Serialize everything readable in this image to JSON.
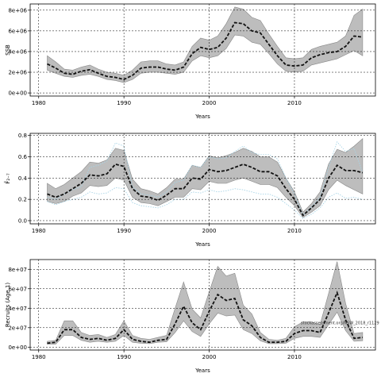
{
  "credit": "stockassessment.org/NSW_2018_r1129",
  "chart_data": [
    {
      "type": "line",
      "ylabel": "SSB",
      "xlabel": "Years",
      "xlim": [
        1979,
        2019.5
      ],
      "xticks": [
        1980,
        1990,
        2000,
        2010
      ],
      "xtick_labels": [
        "1980",
        "1990",
        "2000",
        "2010"
      ],
      "ylim": [
        -300000,
        8600000
      ],
      "yticks": [
        0,
        2000000,
        4000000,
        6000000,
        8000000
      ],
      "ytick_labels": [
        "0e+00",
        "2e+06",
        "4e+06",
        "6e+06",
        "8e+06"
      ],
      "grid": true,
      "x": [
        1981,
        1982,
        1983,
        1984,
        1985,
        1986,
        1987,
        1988,
        1989,
        1990,
        1991,
        1992,
        1993,
        1994,
        1995,
        1996,
        1997,
        1998,
        1999,
        2000,
        2001,
        2002,
        2003,
        2004,
        2005,
        2006,
        2007,
        2008,
        2009,
        2010,
        2011,
        2012,
        2013,
        2014,
        2015,
        2016,
        2017,
        2018
      ],
      "series": [
        {
          "role": "estimate",
          "values": [
            2800000,
            2400000,
            1900000,
            1800000,
            2100000,
            2250000,
            1900000,
            1600000,
            1500000,
            1300000,
            1700000,
            2400000,
            2500000,
            2500000,
            2300000,
            2200000,
            2500000,
            3800000,
            4400000,
            4200000,
            4400000,
            5300000,
            6800000,
            6700000,
            6000000,
            5800000,
            4700000,
            3600000,
            2700000,
            2600000,
            2700000,
            3400000,
            3700000,
            3900000,
            4000000,
            4500000,
            5500000,
            5400000
          ]
        },
        {
          "role": "upper",
          "values": [
            3600000,
            3000000,
            2300000,
            2200000,
            2500000,
            2700000,
            2300000,
            2000000,
            1900000,
            1700000,
            2200000,
            3000000,
            3100000,
            3100000,
            2800000,
            2700000,
            3000000,
            4500000,
            5300000,
            5100000,
            5500000,
            6700000,
            8300000,
            8100000,
            7300000,
            7000000,
            5700000,
            4500000,
            3400000,
            3300000,
            3400000,
            4200000,
            4500000,
            4700000,
            4900000,
            5500000,
            7500000,
            8100000
          ]
        },
        {
          "role": "lower",
          "values": [
            2200000,
            1900000,
            1600000,
            1500000,
            1700000,
            1800000,
            1600000,
            1300000,
            1200000,
            1000000,
            1300000,
            1900000,
            2000000,
            2000000,
            1900000,
            1800000,
            2000000,
            3100000,
            3600000,
            3400000,
            3600000,
            4300000,
            5600000,
            5500000,
            4900000,
            4700000,
            3800000,
            2800000,
            2100000,
            2000000,
            2100000,
            2700000,
            2900000,
            3100000,
            3300000,
            3700000,
            4100000,
            3600000
          ]
        }
      ]
    },
    {
      "type": "line",
      "ylabel": "F̄₂₋₇",
      "xlabel": "Years",
      "xlim": [
        1979,
        2019.5
      ],
      "xticks": [
        1980,
        1990,
        2000,
        2010
      ],
      "xtick_labels": [
        "1980",
        "1990",
        "2000",
        "2010"
      ],
      "ylim": [
        -0.03,
        0.82
      ],
      "yticks": [
        0.0,
        0.2,
        0.4,
        0.6,
        0.8
      ],
      "ytick_labels": [
        "0.0",
        "0.2",
        "0.4",
        "0.6",
        "0.8"
      ],
      "grid": true,
      "x": [
        1981,
        1982,
        1983,
        1984,
        1985,
        1986,
        1987,
        1988,
        1989,
        1990,
        1991,
        1992,
        1993,
        1994,
        1995,
        1996,
        1997,
        1998,
        1999,
        2000,
        2001,
        2002,
        2003,
        2004,
        2005,
        2006,
        2007,
        2008,
        2009,
        2010,
        2011,
        2012,
        2013,
        2014,
        2015,
        2016,
        2017,
        2018
      ],
      "series": [
        {
          "role": "estimate",
          "values": [
            0.25,
            0.22,
            0.25,
            0.3,
            0.35,
            0.43,
            0.42,
            0.44,
            0.53,
            0.51,
            0.3,
            0.23,
            0.22,
            0.19,
            0.24,
            0.3,
            0.3,
            0.4,
            0.39,
            0.48,
            0.46,
            0.47,
            0.5,
            0.53,
            0.5,
            0.46,
            0.46,
            0.42,
            0.3,
            0.2,
            0.05,
            0.12,
            0.2,
            0.4,
            0.52,
            0.47,
            0.47,
            0.45
          ]
        },
        {
          "role": "upper",
          "values": [
            0.35,
            0.3,
            0.34,
            0.4,
            0.46,
            0.55,
            0.54,
            0.57,
            0.68,
            0.66,
            0.39,
            0.3,
            0.28,
            0.25,
            0.31,
            0.39,
            0.39,
            0.52,
            0.5,
            0.61,
            0.59,
            0.61,
            0.64,
            0.68,
            0.65,
            0.6,
            0.6,
            0.55,
            0.4,
            0.27,
            0.08,
            0.16,
            0.27,
            0.53,
            0.67,
            0.64,
            0.7,
            0.77
          ]
        },
        {
          "role": "lower",
          "values": [
            0.18,
            0.16,
            0.18,
            0.23,
            0.26,
            0.33,
            0.32,
            0.33,
            0.4,
            0.38,
            0.22,
            0.17,
            0.16,
            0.14,
            0.18,
            0.22,
            0.22,
            0.3,
            0.29,
            0.37,
            0.35,
            0.35,
            0.38,
            0.4,
            0.37,
            0.34,
            0.34,
            0.31,
            0.22,
            0.14,
            0.03,
            0.08,
            0.14,
            0.29,
            0.38,
            0.33,
            0.29,
            0.25
          ]
        },
        {
          "role": "dotted-upper",
          "values": [
            0.22,
            0.2,
            0.25,
            0.29,
            0.32,
            0.5,
            0.52,
            0.56,
            0.73,
            0.7,
            0.32,
            0.25,
            0.24,
            0.22,
            0.27,
            0.36,
            0.38,
            0.52,
            0.5,
            0.6,
            0.58,
            0.59,
            0.65,
            0.7,
            0.64,
            0.62,
            0.62,
            0.58,
            0.4,
            0.25,
            0.05,
            0.13,
            0.22,
            0.5,
            0.74,
            0.65,
            0.68,
            0.45
          ]
        },
        {
          "role": "dotted-lower",
          "values": [
            0.18,
            0.15,
            0.18,
            0.2,
            0.22,
            0.27,
            0.25,
            0.26,
            0.31,
            0.3,
            0.17,
            0.14,
            0.13,
            0.12,
            0.15,
            0.2,
            0.2,
            0.27,
            0.26,
            0.29,
            0.27,
            0.28,
            0.3,
            0.29,
            0.27,
            0.25,
            0.25,
            0.22,
            0.16,
            0.1,
            0.02,
            0.06,
            0.12,
            0.22,
            0.26,
            0.21,
            0.22,
            0.2
          ]
        }
      ]
    },
    {
      "type": "line",
      "ylabel": "Recruits (Age 1)",
      "xlabel": "Years",
      "xlim": [
        1979,
        2019.5
      ],
      "xticks": [
        1980,
        1990,
        2000,
        2010
      ],
      "xtick_labels": [
        "1980",
        "1990",
        "2000",
        "2010"
      ],
      "ylim": [
        -3000000,
        90000000
      ],
      "yticks": [
        0,
        20000000,
        40000000,
        60000000,
        80000000
      ],
      "ytick_labels": [
        "0e+00",
        "2e+07",
        "4e+07",
        "6e+07",
        "8e+07"
      ],
      "grid": true,
      "x": [
        1981,
        1982,
        1983,
        1984,
        1985,
        1986,
        1987,
        1988,
        1989,
        1990,
        1991,
        1992,
        1993,
        1994,
        1995,
        1996,
        1997,
        1998,
        1999,
        2000,
        2001,
        2002,
        2003,
        2004,
        2005,
        2006,
        2007,
        2008,
        2009,
        2010,
        2011,
        2012,
        2013,
        2014,
        2015,
        2016,
        2017,
        2018
      ],
      "series": [
        {
          "role": "estimate",
          "values": [
            4000000,
            5000000,
            18000000,
            18000000,
            10000000,
            8000000,
            9000000,
            7000000,
            9000000,
            18000000,
            8000000,
            6000000,
            5000000,
            7000000,
            8000000,
            24000000,
            42000000,
            25000000,
            18000000,
            37000000,
            54000000,
            48000000,
            50000000,
            28000000,
            22000000,
            10000000,
            5000000,
            5000000,
            6000000,
            14000000,
            17000000,
            17000000,
            15000000,
            35000000,
            56000000,
            28000000,
            9000000,
            10000000
          ]
        },
        {
          "role": "upper",
          "values": [
            6000000,
            7000000,
            27000000,
            27000000,
            15000000,
            12000000,
            13000000,
            10000000,
            13000000,
            27000000,
            12000000,
            9000000,
            8000000,
            10000000,
            12000000,
            40000000,
            67000000,
            39000000,
            30000000,
            57000000,
            83000000,
            73000000,
            76000000,
            43000000,
            34000000,
            15000000,
            8000000,
            7000000,
            9000000,
            21000000,
            26000000,
            26000000,
            23000000,
            55000000,
            88000000,
            45000000,
            14000000,
            15000000
          ]
        },
        {
          "role": "lower",
          "values": [
            3000000,
            3000000,
            12000000,
            12000000,
            7000000,
            5000000,
            6000000,
            5000000,
            6000000,
            12000000,
            5000000,
            4000000,
            3500000,
            5000000,
            5500000,
            15000000,
            27000000,
            16000000,
            11000000,
            24000000,
            35000000,
            32000000,
            33000000,
            18000000,
            14000000,
            6500000,
            3500000,
            3500000,
            4000000,
            9000000,
            11000000,
            11000000,
            10000000,
            23000000,
            36000000,
            17000000,
            6000000,
            6500000
          ]
        }
      ]
    }
  ]
}
